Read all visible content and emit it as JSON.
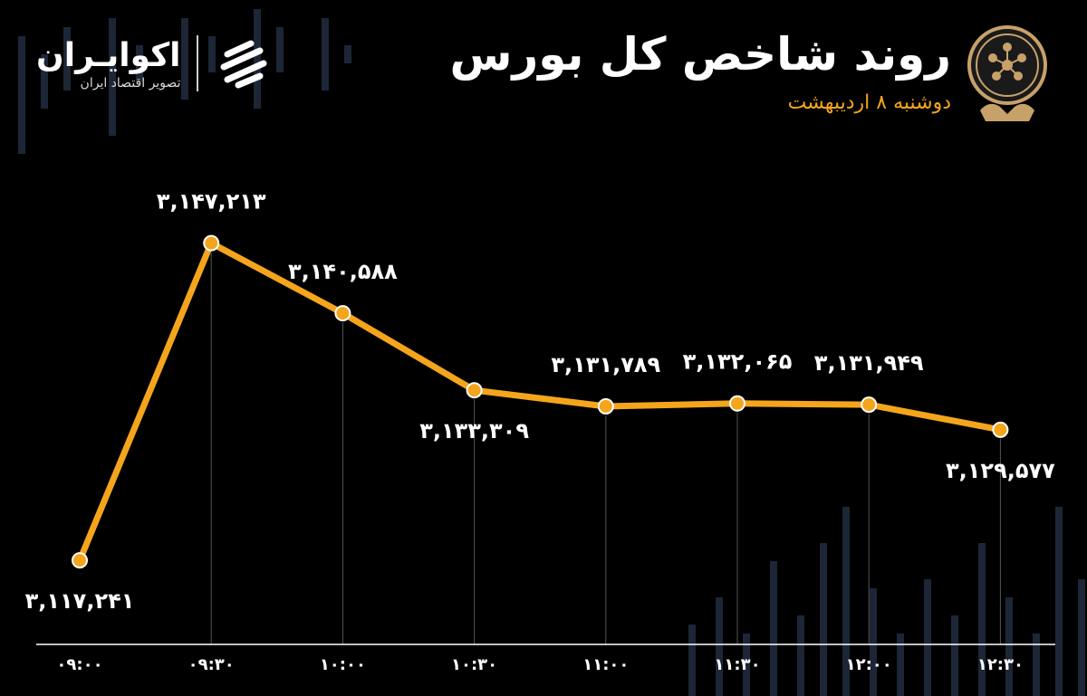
{
  "header": {
    "title": "روند شاخص کل بورس",
    "subtitle": "دوشنبه ۸ اردیبهشت"
  },
  "brand": {
    "name": "اکوایـران",
    "tagline": "تصویر اقتصاد ایران"
  },
  "colors": {
    "background": "#000000",
    "line": "#f4a51c",
    "marker_fill": "#f4a51c",
    "marker_stroke": "#ffffff",
    "text": "#ffffff",
    "accent": "#f4a51c",
    "gridline": "#555555"
  },
  "chart_data": {
    "type": "line",
    "title": "روند شاخص کل بورس",
    "xlabel": "",
    "ylabel": "",
    "categories": [
      "۰۹:۰۰",
      "۰۹:۳۰",
      "۱۰:۰۰",
      "۱۰:۳۰",
      "۱۱:۰۰",
      "۱۱:۳۰",
      "۱۲:۰۰",
      "۱۲:۳۰"
    ],
    "values": [
      3117241,
      3147213,
      3140588,
      3133309,
      3131789,
      3132065,
      3131949,
      3129577
    ],
    "value_labels": [
      "۳,۱۱۷,۲۴۱",
      "۳,۱۴۷,۲۱۳",
      "۳,۱۴۰,۵۸۸",
      "۳,۱۳۳,۳۰۹",
      "۳,۱۳۱,۷۸۹",
      "۳,۱۳۲,۰۶۵",
      "۳,۱۳۱,۹۴۹",
      "۳,۱۲۹,۵۷۷"
    ],
    "label_position": [
      "below",
      "above",
      "above",
      "below",
      "above",
      "above",
      "above",
      "below"
    ],
    "ylim": [
      3114000,
      3150000
    ],
    "grid": "vertical-drop-lines",
    "legend": "none"
  }
}
